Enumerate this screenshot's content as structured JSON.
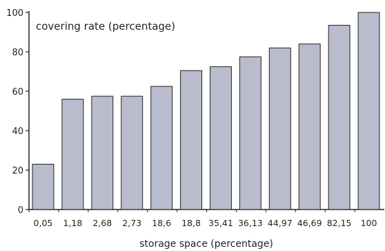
{
  "chart_data": {
    "type": "bar",
    "title": "",
    "xlabel": "storage space (percentage)",
    "ylabel": "",
    "annotation": "covering rate (percentage)",
    "categories": [
      "0,05",
      "1,18",
      "2,68",
      "2,73",
      "18,6",
      "18,8",
      "35,41",
      "36,13",
      "44,97",
      "46,69",
      "82,15",
      "100"
    ],
    "values": [
      23,
      56,
      57.5,
      57.5,
      62.5,
      70.5,
      72.5,
      77.5,
      82,
      84,
      93.5,
      100
    ],
    "ylim": [
      0,
      100
    ],
    "yticks": [
      0,
      20,
      40,
      60,
      80,
      100
    ],
    "grid": false,
    "legend": "none",
    "bar_color": "#b8bccd",
    "edge_color": "#231f20"
  }
}
